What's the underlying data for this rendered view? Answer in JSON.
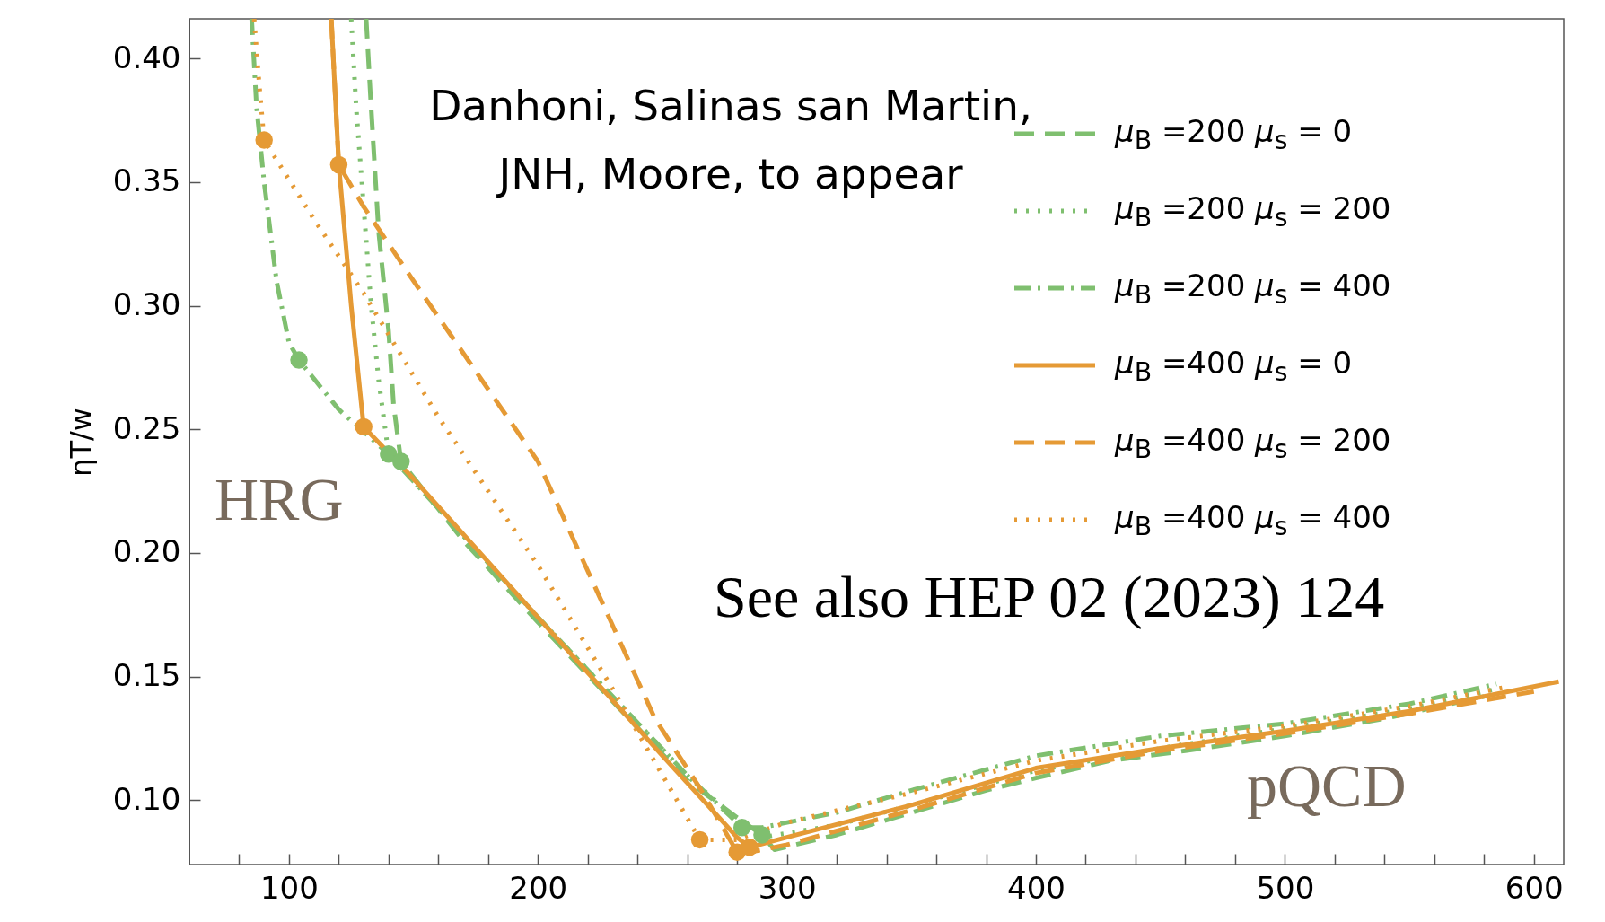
{
  "chart_data": {
    "type": "line",
    "ylabel": "ηT/w",
    "xlim": [
      60,
      612
    ],
    "ylim": [
      0.074,
      0.416
    ],
    "xticks": [
      {
        "value": 80,
        "label": null
      },
      100,
      {
        "value": 120,
        "label": null
      },
      {
        "value": 140,
        "label": null
      },
      {
        "value": 160,
        "label": null
      },
      {
        "value": 180,
        "label": null
      },
      200,
      {
        "value": 220,
        "label": null
      },
      {
        "value": 240,
        "label": null
      },
      {
        "value": 260,
        "label": null
      },
      {
        "value": 280,
        "label": null
      },
      300,
      {
        "value": 320,
        "label": null
      },
      {
        "value": 340,
        "label": null
      },
      {
        "value": 360,
        "label": null
      },
      {
        "value": 380,
        "label": null
      },
      400,
      {
        "value": 420,
        "label": null
      },
      {
        "value": 440,
        "label": null
      },
      {
        "value": 460,
        "label": null
      },
      {
        "value": 480,
        "label": null
      },
      500,
      {
        "value": 520,
        "label": null
      },
      {
        "value": 540,
        "label": null
      },
      {
        "value": 560,
        "label": null
      },
      {
        "value": 580,
        "label": null
      },
      600
    ],
    "yticks": [
      {
        "value": 0.1,
        "label": "0.10"
      },
      {
        "value": 0.15,
        "label": "0.15"
      },
      {
        "value": 0.2,
        "label": "0.20"
      },
      {
        "value": 0.25,
        "label": "0.25"
      },
      {
        "value": 0.3,
        "label": "0.30"
      },
      {
        "value": 0.35,
        "label": "0.35"
      },
      {
        "value": 0.4,
        "label": "0.40"
      }
    ],
    "grid": false,
    "legend": "top right",
    "annotations": [
      "Danhoni, Salinas san Martin,\nJNH, Moore, to appear",
      "See also HEP 02 (2023) 124",
      "HRG",
      "pQCD"
    ],
    "series": [
      {
        "name": "μ$_{B}$ =200 μ$_{s}$ = 0",
        "color": "#7fbf6f",
        "line_style": "dashed",
        "x": [
          131,
          133,
          136,
          140,
          142,
          145,
          170,
          200,
          230,
          260,
          280,
          290,
          295,
          320,
          350,
          380,
          400,
          430,
          460,
          500,
          540,
          580
        ],
        "values": [
          0.416,
          0.38,
          0.33,
          0.29,
          0.26,
          0.237,
          0.205,
          0.172,
          0.14,
          0.108,
          0.093,
          0.086,
          0.08,
          0.086,
          0.095,
          0.104,
          0.109,
          0.116,
          0.12,
          0.126,
          0.133,
          0.142
        ]
      },
      {
        "name": "μ$_{B}$ =200 μ$_{s}$ = 200",
        "color": "#7fbf6f",
        "line_style": "dotted",
        "x": [
          125,
          127,
          130,
          133,
          136,
          140,
          170,
          200,
          230,
          260,
          280,
          290,
          320,
          350,
          400,
          450,
          500,
          550,
          585
        ],
        "values": [
          0.416,
          0.38,
          0.34,
          0.3,
          0.27,
          0.24,
          0.207,
          0.174,
          0.142,
          0.11,
          0.092,
          0.085,
          0.09,
          0.098,
          0.112,
          0.121,
          0.129,
          0.137,
          0.145
        ]
      },
      {
        "name": "μ$_{B}$ =200 μ$_{s}$ = 400",
        "color": "#7fbf6f",
        "line_style": "dashdot",
        "x": [
          85,
          87,
          90,
          95,
          100,
          104,
          120,
          140,
          170,
          200,
          230,
          260,
          282,
          290,
          320,
          350,
          400,
          450,
          500,
          550,
          585
        ],
        "values": [
          0.416,
          0.38,
          0.35,
          0.31,
          0.285,
          0.278,
          0.258,
          0.24,
          0.207,
          0.174,
          0.142,
          0.11,
          0.089,
          0.089,
          0.095,
          0.104,
          0.118,
          0.126,
          0.131,
          0.139,
          0.147
        ]
      },
      {
        "name": "μ$_{B}$ =400 μ$_{s}$ = 0",
        "color": "#e59a35",
        "line_style": "solid",
        "x": [
          117,
          120,
          125,
          130,
          150,
          200,
          250,
          280,
          285,
          300,
          350,
          400,
          450,
          500,
          550,
          610
        ],
        "values": [
          0.416,
          0.357,
          0.3,
          0.251,
          0.23,
          0.174,
          0.118,
          0.085,
          0.081,
          0.085,
          0.098,
          0.113,
          0.121,
          0.128,
          0.136,
          0.148
        ]
      },
      {
        "name": "μ$_{B}$ =400 μ$_{s}$ = 200",
        "color": "#e59a35",
        "line_style": "dashed",
        "x": [
          117,
          120,
          130,
          150,
          200,
          247,
          265,
          280,
          285,
          300,
          350,
          400,
          450,
          500,
          550,
          600
        ],
        "values": [
          0.416,
          0.357,
          0.34,
          0.31,
          0.237,
          0.133,
          0.105,
          0.079,
          0.079,
          0.082,
          0.096,
          0.111,
          0.12,
          0.127,
          0.135,
          0.144
        ]
      },
      {
        "name": "μ$_{B}$ =400 μ$_{s}$ = 400",
        "color": "#e59a35",
        "line_style": "dotted",
        "x": [
          86,
          88,
          90,
          110,
          130,
          160,
          200,
          230,
          265,
          280,
          285,
          300,
          350,
          400,
          450,
          500,
          550,
          590
        ],
        "values": [
          0.416,
          0.39,
          0.367,
          0.335,
          0.305,
          0.255,
          0.195,
          0.145,
          0.084,
          0.084,
          0.086,
          0.091,
          0.103,
          0.116,
          0.124,
          0.13,
          0.138,
          0.146
        ]
      },
      {
        "type": "scatter",
        "marker": "circle",
        "color": "#7fbf6f",
        "x": [
          104,
          140,
          145,
          282,
          290
        ],
        "values": [
          0.278,
          0.24,
          0.237,
          0.089,
          0.086
        ]
      },
      {
        "type": "scatter",
        "marker": "circle",
        "color": "#e59a35",
        "x": [
          90,
          120,
          130,
          265,
          280,
          285
        ],
        "values": [
          0.367,
          0.357,
          0.251,
          0.084,
          0.079,
          0.081
        ]
      }
    ]
  }
}
